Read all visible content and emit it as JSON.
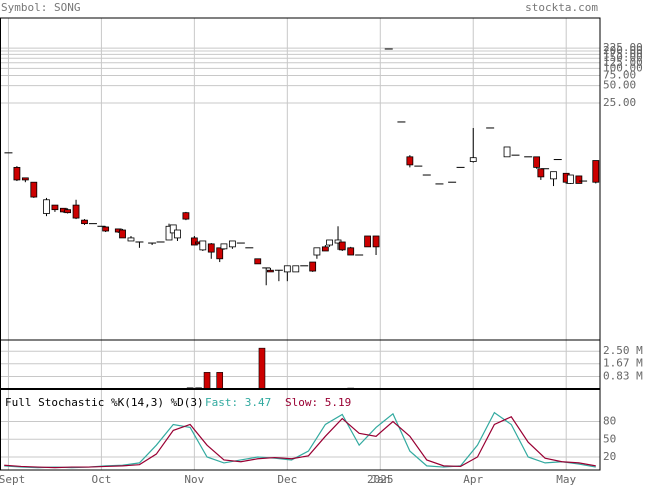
{
  "chart_data": [
    {
      "type": "candlestick",
      "title": "Symbol: SONG",
      "source": "stockta.com",
      "log_scale": true,
      "grid": true,
      "xlim": [
        -1,
        141
      ],
      "ylim": [
        0.0019,
        750
      ],
      "yticks": [
        {
          "value": 225,
          "label": "225.00"
        },
        {
          "value": 200,
          "label": "200.00"
        },
        {
          "value": 175,
          "label": "175.00"
        },
        {
          "value": 150,
          "label": "150.00"
        },
        {
          "value": 125,
          "label": "125.00"
        },
        {
          "value": 100,
          "label": "100.00"
        },
        {
          "value": 75,
          "label": "75.00"
        },
        {
          "value": 50,
          "label": "50.00"
        },
        {
          "value": 25,
          "label": "25.00"
        }
      ],
      "xticks": [
        {
          "value": 1,
          "label": "Sept"
        },
        {
          "value": 23,
          "label": "Oct"
        },
        {
          "value": 45,
          "label": "Nov"
        },
        {
          "value": 67,
          "label": "Dec"
        },
        {
          "value": 89,
          "label": "Jan"
        },
        {
          "value": 111,
          "label": "Apr"
        },
        {
          "value": 133,
          "label": "May"
        }
      ],
      "year_label": "2025",
      "up_color": "#ffffff",
      "down_color": "#cc0000",
      "x": [
        1,
        3,
        5,
        7,
        10,
        12,
        14,
        15,
        17,
        19,
        21,
        23,
        24,
        27,
        28,
        30,
        32,
        35,
        37,
        39,
        40,
        41,
        43,
        45,
        46,
        47,
        49,
        51,
        52,
        54,
        56,
        58,
        60,
        62,
        63,
        65,
        67,
        69,
        71,
        73,
        74,
        76,
        77,
        79,
        80,
        82,
        84,
        86,
        88,
        91,
        94,
        96,
        98,
        100,
        103,
        106,
        108,
        111,
        115,
        119,
        121,
        124,
        126,
        127,
        128,
        130,
        131,
        133,
        134,
        136,
        137,
        140
      ],
      "open": [
        3.4,
        1.9,
        1.25,
        1.05,
        0.3,
        0.42,
        0.37,
        0.35,
        0.42,
        0.23,
        0.2,
        0.18,
        0.175,
        0.162,
        0.155,
        0.1,
        0.096,
        0.092,
        0.096,
        0.104,
        0.138,
        0.113,
        0.31,
        0.113,
        0.096,
        0.07,
        0.089,
        0.076,
        0.073,
        0.079,
        0.092,
        0.076,
        0.049,
        0.034,
        0.031,
        0.031,
        0.029,
        0.029,
        0.037,
        0.043,
        0.057,
        0.079,
        0.085,
        0.092,
        0.096,
        0.076,
        0.057,
        0.122,
        0.122,
        217,
        11.7,
        2.9,
        2.0,
        1.4,
        0.98,
        1.05,
        1.9,
        2.4,
        9.2,
        2.9,
        3.1,
        2.9,
        2.9,
        1.8,
        1.8,
        1.2,
        2.6,
        1.5,
        1.0,
        1.35,
        1.1,
        2.5
      ],
      "high": [
        3.4,
        2.0,
        1.25,
        1.05,
        0.56,
        0.42,
        0.37,
        0.37,
        0.52,
        0.24,
        0.2,
        0.18,
        0.18,
        0.162,
        0.162,
        0.122,
        0.096,
        0.092,
        0.096,
        0.2,
        0.19,
        0.155,
        0.32,
        0.122,
        0.096,
        0.1,
        0.092,
        0.076,
        0.089,
        0.1,
        0.092,
        0.076,
        0.049,
        0.034,
        0.034,
        0.031,
        0.037,
        0.037,
        0.037,
        0.043,
        0.076,
        0.085,
        0.104,
        0.18,
        0.096,
        0.079,
        0.057,
        0.122,
        0.122,
        217,
        11.7,
        3.1,
        2.0,
        1.4,
        0.98,
        1.05,
        1.9,
        9.2,
        9.2,
        4.3,
        3.1,
        2.9,
        2.9,
        1.8,
        1.8,
        1.6,
        2.6,
        1.5,
        1.4,
        1.35,
        1.1,
        2.5
      ],
      "low": [
        3.4,
        1.1,
        1.05,
        0.56,
        0.27,
        0.32,
        0.31,
        0.3,
        0.24,
        0.19,
        0.2,
        0.18,
        0.143,
        0.138,
        0.113,
        0.1,
        0.076,
        0.085,
        0.096,
        0.104,
        0.138,
        0.1,
        0.23,
        0.085,
        0.089,
        0.067,
        0.049,
        0.043,
        0.07,
        0.073,
        0.092,
        0.076,
        0.04,
        0.017,
        0.029,
        0.02,
        0.02,
        0.029,
        0.037,
        0.029,
        0.049,
        0.067,
        0.079,
        0.07,
        0.067,
        0.057,
        0.057,
        0.079,
        0.057,
        217,
        11.7,
        1.9,
        2.0,
        1.4,
        0.98,
        1.05,
        1.9,
        2.3,
        9.2,
        2.9,
        3.1,
        2.9,
        1.8,
        1.15,
        1.8,
        0.9,
        2.6,
        0.98,
        0.98,
        1.0,
        1.1,
        1.0
      ],
      "close": [
        3.4,
        1.15,
        1.15,
        0.58,
        0.52,
        0.35,
        0.32,
        0.31,
        0.25,
        0.2,
        0.2,
        0.18,
        0.149,
        0.143,
        0.113,
        0.113,
        0.096,
        0.092,
        0.096,
        0.18,
        0.19,
        0.155,
        0.24,
        0.085,
        0.089,
        0.1,
        0.064,
        0.049,
        0.089,
        0.1,
        0.092,
        0.076,
        0.04,
        0.034,
        0.029,
        0.031,
        0.037,
        0.037,
        0.037,
        0.03,
        0.076,
        0.067,
        0.104,
        0.104,
        0.07,
        0.057,
        0.057,
        0.079,
        0.079,
        217,
        11.7,
        2.1,
        2.0,
        1.4,
        0.98,
        1.05,
        1.9,
        2.8,
        9.2,
        4.3,
        3.1,
        2.9,
        1.9,
        1.3,
        1.8,
        1.6,
        2.6,
        1.05,
        1.4,
        1.0,
        1.1,
        1.05
      ]
    },
    {
      "type": "bar",
      "xlim": [
        -1,
        141
      ],
      "ylim": [
        0,
        3240000
      ],
      "color": "#cc0000",
      "yticks": [
        {
          "value": 2500000,
          "label": "2.50 M"
        },
        {
          "value": 1670000,
          "label": "1.67 M"
        },
        {
          "value": 830000,
          "label": "0.83 M"
        }
      ],
      "x": [
        44,
        46,
        48,
        51,
        61,
        82
      ],
      "values": [
        80000,
        80000,
        1100000,
        1100000,
        2700000,
        60000
      ]
    },
    {
      "type": "line",
      "title": "Full Stochastic %K(14,3) %D(3)",
      "xlim": [
        -1,
        141
      ],
      "ylim": [
        -2,
        135
      ],
      "yticks": [
        80,
        50,
        20
      ],
      "x": [
        0,
        4,
        8,
        12,
        16,
        20,
        24,
        28,
        32,
        36,
        40,
        44,
        48,
        52,
        56,
        60,
        64,
        68,
        72,
        76,
        80,
        84,
        88,
        92,
        96,
        100,
        104,
        108,
        112,
        116,
        120,
        124,
        128,
        132,
        136,
        140
      ],
      "series": [
        {
          "name": "Fast: 3.47",
          "color": "#33aaa0",
          "values": [
            5,
            3,
            2,
            3,
            2,
            3,
            5,
            6,
            10,
            40,
            75,
            70,
            20,
            10,
            15,
            20,
            18,
            15,
            30,
            75,
            92,
            40,
            70,
            93,
            30,
            5,
            3,
            5,
            40,
            95,
            75,
            20,
            10,
            12,
            8,
            3
          ]
        },
        {
          "name": "Slow: 5.19",
          "color": "#990033",
          "values": [
            6,
            4,
            3,
            2,
            3,
            3,
            4,
            5,
            7,
            25,
            65,
            75,
            40,
            15,
            12,
            17,
            19,
            17,
            22,
            55,
            85,
            60,
            55,
            80,
            55,
            15,
            5,
            4,
            20,
            75,
            88,
            45,
            18,
            12,
            10,
            5
          ]
        }
      ]
    }
  ]
}
